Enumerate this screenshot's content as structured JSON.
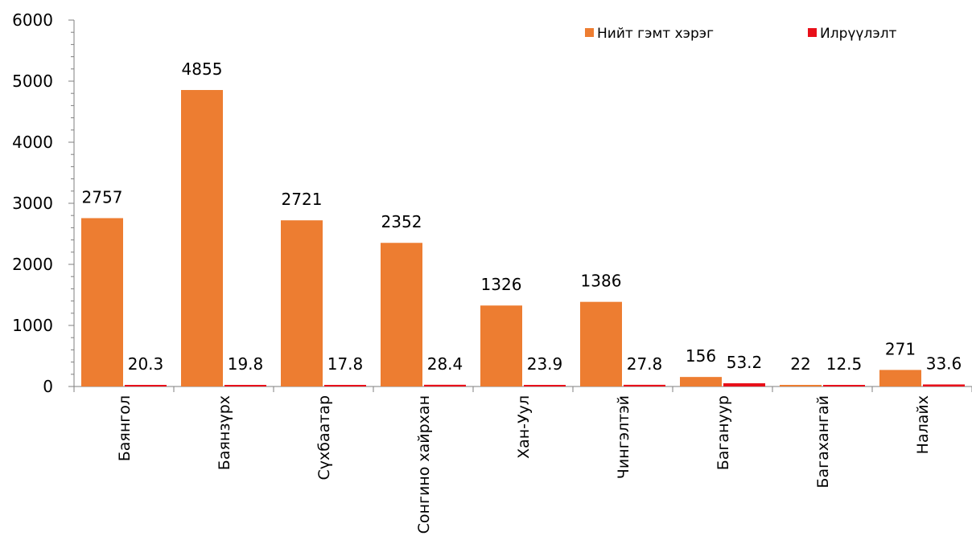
{
  "chart_data": {
    "type": "bar",
    "categories": [
      "Баянгол",
      "Баянзүрх",
      "Сүхбаатар",
      "Сонгино хайрхан",
      "Хан-Уул",
      "Чингэлтэй",
      "Багануур",
      "Багахангай",
      "Налайх"
    ],
    "series": [
      {
        "name": "Нийт гэмт хэрэг",
        "color": "#ED7D31",
        "values": [
          2757,
          4855,
          2721,
          2352,
          1326,
          1386,
          156,
          22,
          271
        ]
      },
      {
        "name": "Илрүүлэлт",
        "color": "#E8101A",
        "values": [
          20.3,
          19.8,
          17.8,
          28.4,
          23.9,
          27.8,
          53.2,
          12.5,
          33.6
        ]
      }
    ],
    "ylim": [
      0,
      6000
    ],
    "yticks": [
      "0",
      "1000",
      "2000",
      "3000",
      "4000",
      "5000",
      "6000"
    ],
    "legend_position": "top-right",
    "grid": false
  }
}
